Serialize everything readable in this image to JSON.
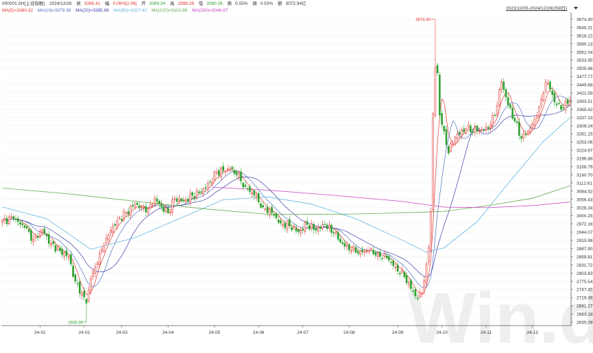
{
  "header": {
    "code": "000001.SH[上证指数]",
    "date": "2024/12/26",
    "close_label": "收",
    "close": "3395.41",
    "change_label": "幅",
    "change": "0.06%[2.06]",
    "open_label": "开",
    "open": "3389.34",
    "high_label": "高",
    "high": "3398.28",
    "low_label": "低",
    "low": "3380.26",
    "turnover_label": "换",
    "turnover": "0.55%",
    "amplitude_label": "振",
    "amplitude": "0.53%",
    "amount_label": "额",
    "amount": "3072.94亿"
  },
  "ma_legend": [
    {
      "label": "MA(5)=3380.32",
      "color": "#e0302a"
    },
    {
      "label": "MA(10)=3379.36",
      "color": "#4a6fbf"
    },
    {
      "label": "MA(20)=3385.98",
      "color": "#3a3aa8"
    },
    {
      "label": "MA(60)=3337.42",
      "color": "#5fb4e0"
    },
    {
      "label": "MA(120)=3102.86",
      "color": "#5caa4a"
    },
    {
      "label": "MA(250)=3046.87",
      "color": "#c640c0"
    }
  ],
  "range_selector": "2023/12/05-2024/12/26(258日)",
  "watermark": "Win.d",
  "chart_data": {
    "type": "candlestick",
    "y_ticks": [
      2635.09,
      2663.18,
      2691.27,
      2719.36,
      2747.45,
      2775.54,
      2803.63,
      2831.72,
      2859.81,
      2887.9,
      2915.98,
      2944.07,
      2972.16,
      3000.25,
      3028.34,
      3056.43,
      3084.52,
      3112.61,
      3140.7,
      3168.79,
      3196.88,
      3224.97,
      3253.06,
      3281.15,
      3309.24,
      3337.33,
      3365.42,
      3393.51,
      3421.59,
      3449.68,
      3477.77,
      3505.86,
      3533.95,
      3562.04,
      3590.13,
      3618.22,
      3646.31,
      3674.4
    ],
    "ylim": [
      2635.09,
      3674.4
    ],
    "x_labels": [
      "24-01",
      "24-02",
      "24-03",
      "24-04",
      "24-05",
      "24-06",
      "24-07",
      "24-08",
      "24-09",
      "24-10",
      "24-11",
      "24-12"
    ],
    "x_label_days": [
      17,
      37,
      54,
      75,
      96,
      116,
      136,
      157,
      179,
      199,
      219,
      240
    ],
    "total_days": 258,
    "annotations": {
      "high": "3674.40",
      "low": "2635.09"
    },
    "up_color": "#e0302a",
    "down_color": "#2ca02c",
    "key_points": [
      [
        0,
        2985
      ],
      [
        5,
        2990
      ],
      [
        10,
        2960
      ],
      [
        14,
        2920
      ],
      [
        18,
        2950
      ],
      [
        22,
        2905
      ],
      [
        26,
        2880
      ],
      [
        30,
        2860
      ],
      [
        33,
        2775
      ],
      [
        36,
        2735
      ],
      [
        38,
        2700
      ],
      [
        40,
        2785
      ],
      [
        43,
        2840
      ],
      [
        46,
        2900
      ],
      [
        49,
        2950
      ],
      [
        52,
        2985
      ],
      [
        56,
        3010
      ],
      [
        60,
        3040
      ],
      [
        63,
        3030
      ],
      [
        66,
        3025
      ],
      [
        69,
        3060
      ],
      [
        72,
        3030
      ],
      [
        75,
        3010
      ],
      [
        78,
        3060
      ],
      [
        82,
        3050
      ],
      [
        86,
        3070
      ],
      [
        90,
        3080
      ],
      [
        94,
        3115
      ],
      [
        97,
        3150
      ],
      [
        100,
        3155
      ],
      [
        103,
        3160
      ],
      [
        106,
        3140
      ],
      [
        110,
        3100
      ],
      [
        114,
        3070
      ],
      [
        118,
        3030
      ],
      [
        122,
        3010
      ],
      [
        126,
        2975
      ],
      [
        130,
        2965
      ],
      [
        134,
        2945
      ],
      [
        138,
        2970
      ],
      [
        142,
        2950
      ],
      [
        146,
        2970
      ],
      [
        150,
        2940
      ],
      [
        154,
        2905
      ],
      [
        158,
        2880
      ],
      [
        162,
        2880
      ],
      [
        166,
        2880
      ],
      [
        170,
        2870
      ],
      [
        174,
        2855
      ],
      [
        178,
        2825
      ],
      [
        182,
        2790
      ],
      [
        185,
        2750
      ],
      [
        188,
        2715
      ],
      [
        190,
        2735
      ],
      [
        192,
        2835
      ],
      [
        193,
        2890
      ],
      [
        194,
        3015
      ],
      [
        195,
        3350
      ],
      [
        196,
        3510
      ],
      [
        197,
        3490
      ],
      [
        198,
        3345
      ],
      [
        200,
        3290
      ],
      [
        202,
        3215
      ],
      [
        205,
        3270
      ],
      [
        210,
        3300
      ],
      [
        215,
        3290
      ],
      [
        220,
        3300
      ],
      [
        223,
        3345
      ],
      [
        226,
        3460
      ],
      [
        229,
        3380
      ],
      [
        232,
        3325
      ],
      [
        235,
        3265
      ],
      [
        238,
        3290
      ],
      [
        241,
        3330
      ],
      [
        244,
        3400
      ],
      [
        246,
        3460
      ],
      [
        248,
        3435
      ],
      [
        250,
        3390
      ],
      [
        253,
        3365
      ],
      [
        256,
        3385
      ],
      [
        257,
        3395
      ]
    ],
    "ma_overlays": [
      {
        "name": "MA(60)",
        "points": [
          [
            0,
            3030
          ],
          [
            20,
            2990
          ],
          [
            40,
            2885
          ],
          [
            60,
            2925
          ],
          [
            80,
            2990
          ],
          [
            100,
            3055
          ],
          [
            120,
            3065
          ],
          [
            140,
            3040
          ],
          [
            160,
            2990
          ],
          [
            180,
            2920
          ],
          [
            192,
            2875
          ],
          [
            200,
            2890
          ],
          [
            215,
            2980
          ],
          [
            230,
            3120
          ],
          [
            245,
            3255
          ],
          [
            257,
            3337
          ]
        ]
      },
      {
        "name": "MA(120)",
        "points": [
          [
            0,
            3095
          ],
          [
            30,
            3075
          ],
          [
            60,
            3050
          ],
          [
            90,
            3025
          ],
          [
            120,
            3005
          ],
          [
            150,
            3005
          ],
          [
            180,
            3010
          ],
          [
            200,
            3015
          ],
          [
            220,
            3035
          ],
          [
            240,
            3060
          ],
          [
            257,
            3103
          ]
        ]
      },
      {
        "name": "MA(250)",
        "points": [
          [
            95,
            3098
          ],
          [
            120,
            3088
          ],
          [
            150,
            3070
          ],
          [
            180,
            3050
          ],
          [
            200,
            3030
          ],
          [
            220,
            3028
          ],
          [
            240,
            3035
          ],
          [
            257,
            3047
          ]
        ]
      }
    ]
  }
}
